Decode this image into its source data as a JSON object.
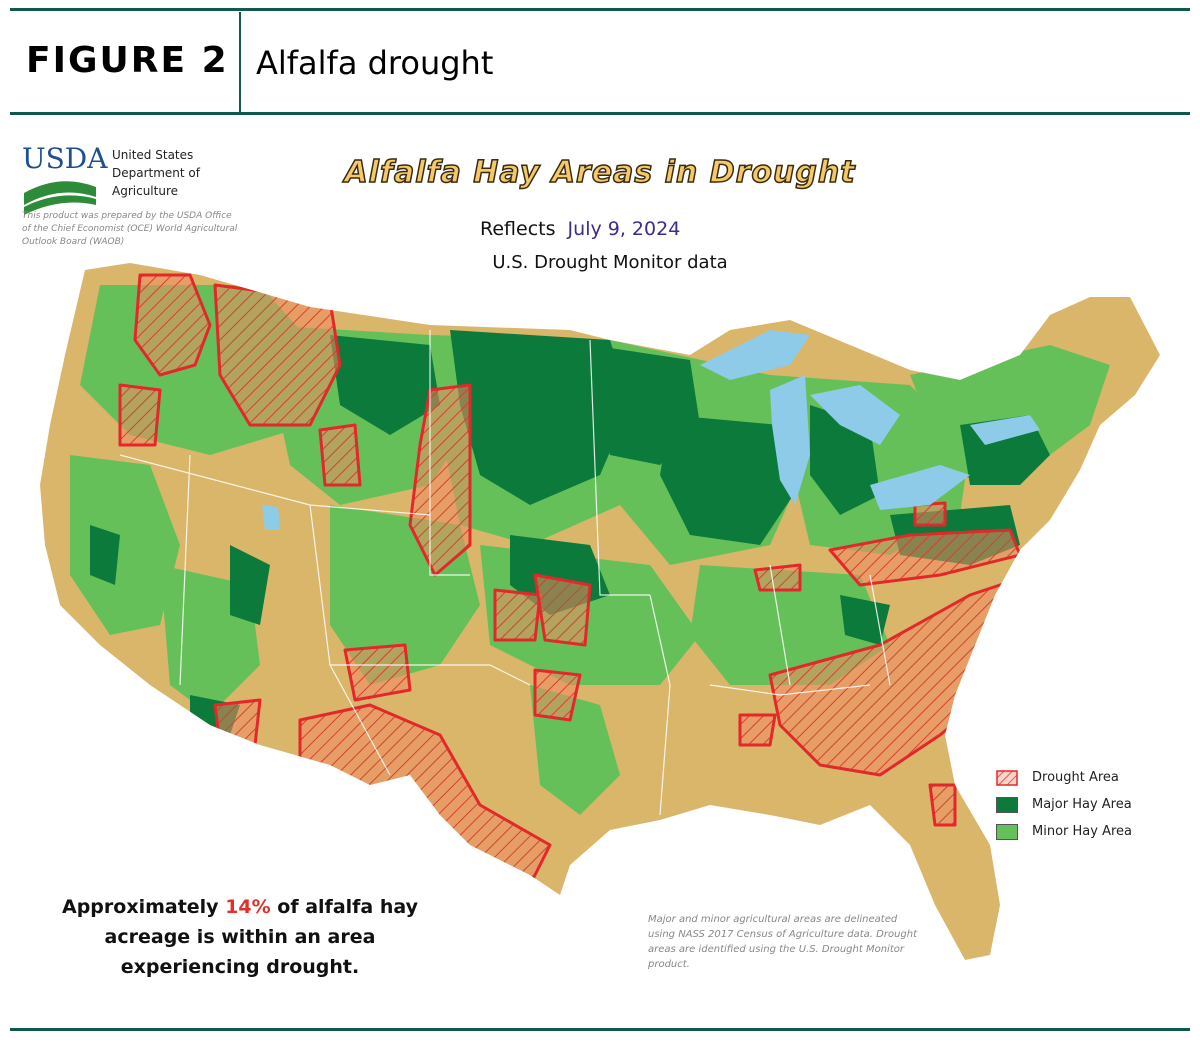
{
  "figure": {
    "label": "FIGURE 2",
    "title": "Alfalfa drought"
  },
  "agency": {
    "logo_text": "USDA",
    "name_line1": "United States",
    "name_line2": "Department of",
    "name_line3": "Agriculture",
    "note": "This product was prepared by the USDA Office of the Chief Economist (OCE) World Agricultural Outlook Board (WAOB)"
  },
  "map": {
    "title": "Alfalfa Hay Areas in Drought",
    "reflects_label": "Reflects",
    "reflects_date": "July 9, 2024",
    "source_line": "U.S. Drought Monitor data",
    "legend": [
      {
        "label": "Drought Area",
        "swatch": "drought"
      },
      {
        "label": "Major Hay Area",
        "swatch": "major"
      },
      {
        "label": "Minor Hay Area",
        "swatch": "minor"
      }
    ],
    "summary_prefix": "Approximately ",
    "summary_pct": "14%",
    "summary_suffix": " of alfalfa hay acreage is within an area experiencing drought.",
    "methodology": "Major and minor agricultural areas are delineated using NASS 2017 Census of Agriculture data.  Drought areas are identified using the U.S. Drought Monitor product.",
    "colors": {
      "non_hay": "#d9b66a",
      "major": "#0b7a3a",
      "minor": "#66c05a",
      "drought_outline": "#e3282b",
      "drought_fill": "#f08a62",
      "water": "#8ecbe8",
      "rule": "#0f5a4e"
    }
  }
}
